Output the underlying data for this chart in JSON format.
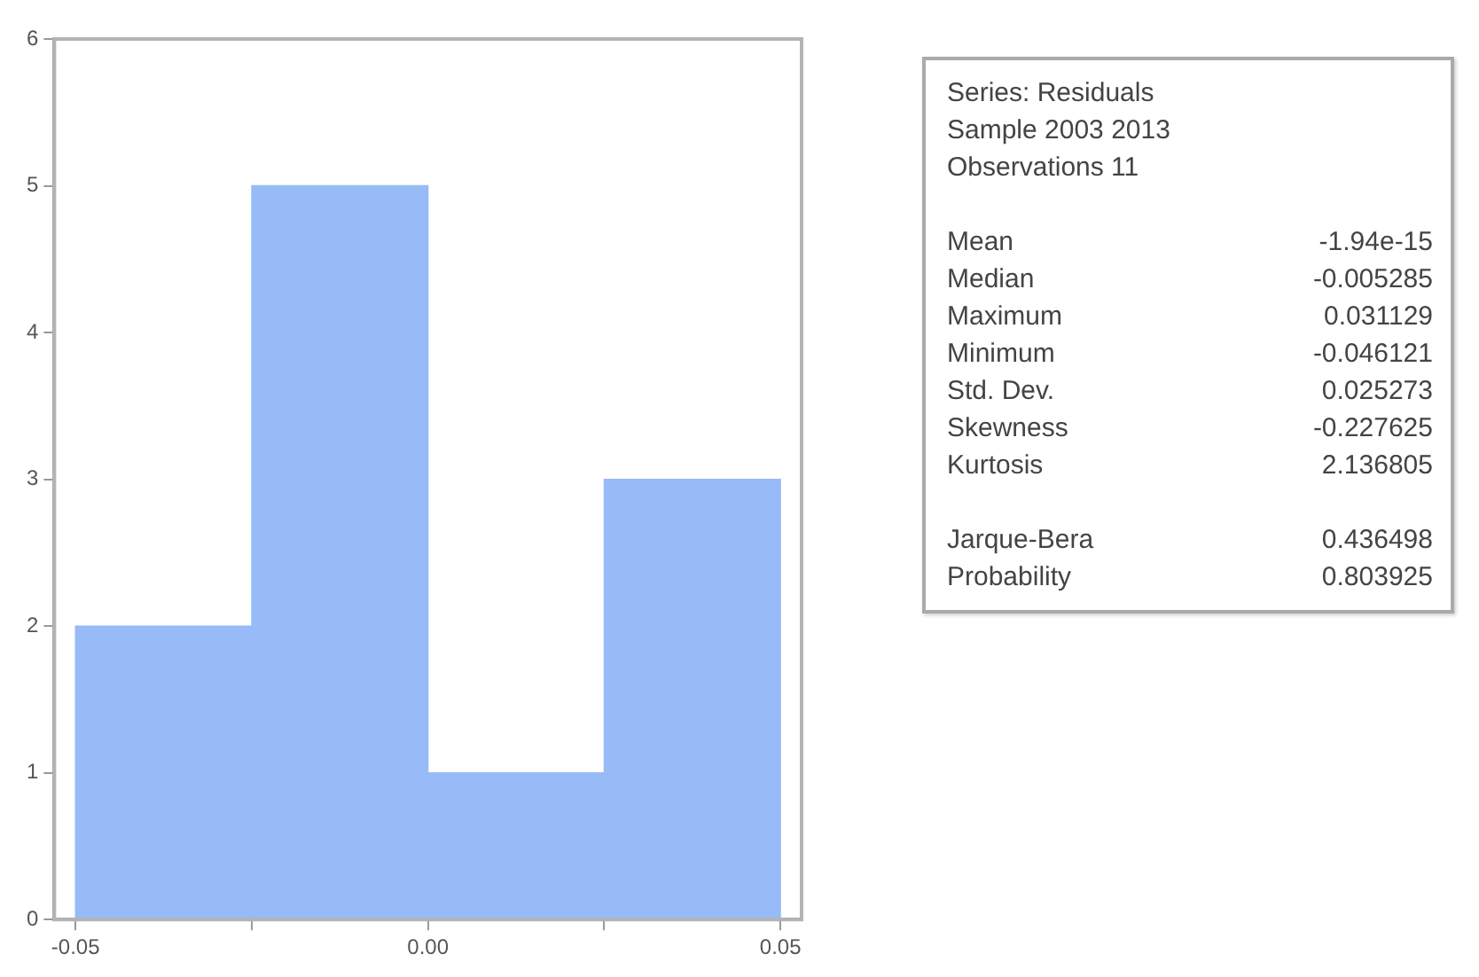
{
  "chart_data": {
    "type": "histogram",
    "bins": [
      -0.05,
      -0.025,
      0,
      0.025,
      0.05
    ],
    "values": [
      2,
      5,
      1,
      3
    ],
    "color": "#97bbf7",
    "xlim": [
      -0.053,
      0.053
    ],
    "xticks": [
      {
        "value": -0.05,
        "label": "-0.05"
      },
      {
        "value": -0.025,
        "label": null
      },
      {
        "value": 0,
        "label": "0.00"
      },
      {
        "value": 0.025,
        "label": null
      },
      {
        "value": 0.05,
        "label": "0.05"
      }
    ],
    "ylim": [
      0,
      6
    ],
    "yticks": [
      0,
      1,
      2,
      3,
      4,
      5,
      6
    ],
    "grid": false,
    "legend": false,
    "annotations": [
      "Series: Residuals",
      "Sample 2003 2013",
      "Observations 11",
      "Mean",
      "-1.94e-15",
      "Median",
      "-0.005285",
      "Maximum",
      "0.031129",
      "Minimum",
      "-0.046121",
      "Std. Dev.",
      "0.025273",
      "Skewness",
      "-0.227625",
      "Kurtosis",
      "2.136805",
      "Jarque-Bera",
      "0.436498",
      "Probability",
      "0.803925"
    ]
  }
}
